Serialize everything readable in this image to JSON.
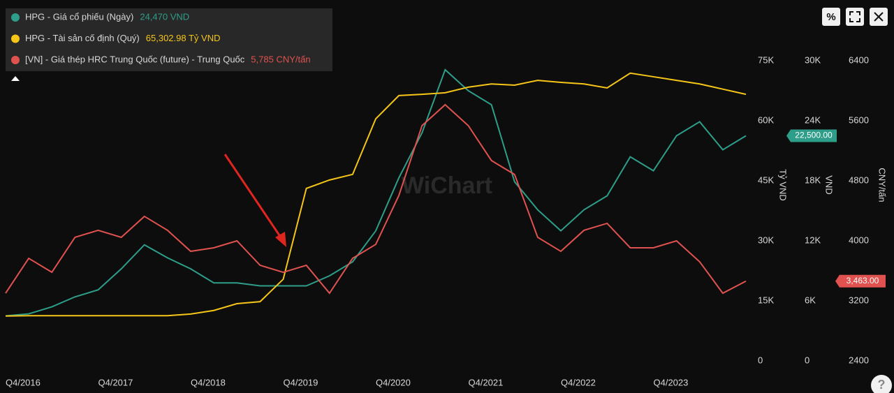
{
  "legend": [
    {
      "name": "HPG - Giá cổ phiếu (Ngày)",
      "value": "24,470 VND",
      "color": "#2e9e8a"
    },
    {
      "name": "HPG - Tài sản cố định (Quý)",
      "value": "65,302.98 Tỷ VND",
      "color": "#f5c518"
    },
    {
      "name": "[VN] - Giá thép HRC Trung Quốc (future) - Trung Quốc",
      "value": "5,785 CNY/tấn",
      "color": "#e0524f"
    }
  ],
  "toolbar": [
    "%"
  ],
  "watermark": "WiChart",
  "help": "?",
  "chart_data": {
    "type": "line",
    "categories": [
      "Q4/2016",
      null,
      null,
      null,
      "Q4/2017",
      null,
      null,
      null,
      "Q4/2018",
      null,
      null,
      null,
      "Q4/2019",
      null,
      null,
      null,
      "Q4/2020",
      null,
      null,
      null,
      "Q4/2021",
      null,
      null,
      null,
      "Q4/2022",
      null,
      null,
      null,
      "Q4/2023",
      null,
      null,
      null,
      null
    ],
    "ylabel": "Tỷ VND",
    "y2label": "VND",
    "y3label": "CNY/tấn",
    "ylim": [
      0,
      90000
    ],
    "yticks": [
      {
        "value": 0,
        "label": "0"
      },
      {
        "value": 15000,
        "label": "15K"
      },
      {
        "value": 30000,
        "label": "30K"
      },
      {
        "value": 45000,
        "label": "45K"
      },
      {
        "value": 60000,
        "label": "60K"
      },
      {
        "value": 75000,
        "label": "75K"
      }
    ],
    "y2lim": [
      0,
      36000
    ],
    "y2ticks": [
      {
        "value": 0,
        "label": "0"
      },
      {
        "value": 6000,
        "label": "6K"
      },
      {
        "value": 12000,
        "label": "12K"
      },
      {
        "value": 18000,
        "label": "18K"
      },
      {
        "value": 24000,
        "label": "24K"
      },
      {
        "value": 30000,
        "label": "30K"
      }
    ],
    "y3lim": [
      2400,
      7200
    ],
    "y3ticks": [
      2400,
      3200,
      4000,
      4800,
      5600,
      6400
    ],
    "series": [
      {
        "name": "HPG - Giá cổ phiếu (Ngày)",
        "color": "#2e9e8a",
        "axis": "y2",
        "flag": {
          "value": 22500,
          "label": "22,500.00"
        },
        "values": [
          4500,
          4700,
          5400,
          6400,
          7100,
          9200,
          11600,
          10300,
          9200,
          7800,
          7800,
          7500,
          7500,
          7500,
          8500,
          9900,
          13000,
          18300,
          22800,
          29100,
          27000,
          25600,
          17900,
          15100,
          13000,
          15100,
          16500,
          20400,
          19000,
          22500,
          23900,
          21100,
          22500
        ]
      },
      {
        "name": "HPG - Tài sản cố định (Quý)",
        "color": "#f5c518",
        "axis": "y",
        "values": [
          11200,
          11300,
          11300,
          11300,
          11300,
          11300,
          11300,
          11300,
          11700,
          12600,
          14300,
          14800,
          20400,
          43100,
          45200,
          46600,
          60500,
          66300,
          66600,
          67000,
          68400,
          69200,
          68900,
          70100,
          69600,
          69200,
          68200,
          71900,
          71000,
          70100,
          69200,
          67900,
          66600
        ]
      },
      {
        "name": "[VN] - Giá thép HRC Trung Quốc (future) - Trung Quốc",
        "color": "#e0524f",
        "axis": "y3",
        "flag": {
          "value": 3463,
          "label": "3,463.00"
        },
        "values": [
          3302,
          3767,
          3581,
          4047,
          4140,
          4047,
          4326,
          4140,
          3860,
          3907,
          4000,
          3674,
          3581,
          3674,
          3302,
          3767,
          3953,
          4605,
          5535,
          5814,
          5535,
          5070,
          4884,
          4047,
          3860,
          4140,
          4233,
          3907,
          3907,
          4000,
          3721,
          3302,
          3463
        ]
      }
    ]
  }
}
